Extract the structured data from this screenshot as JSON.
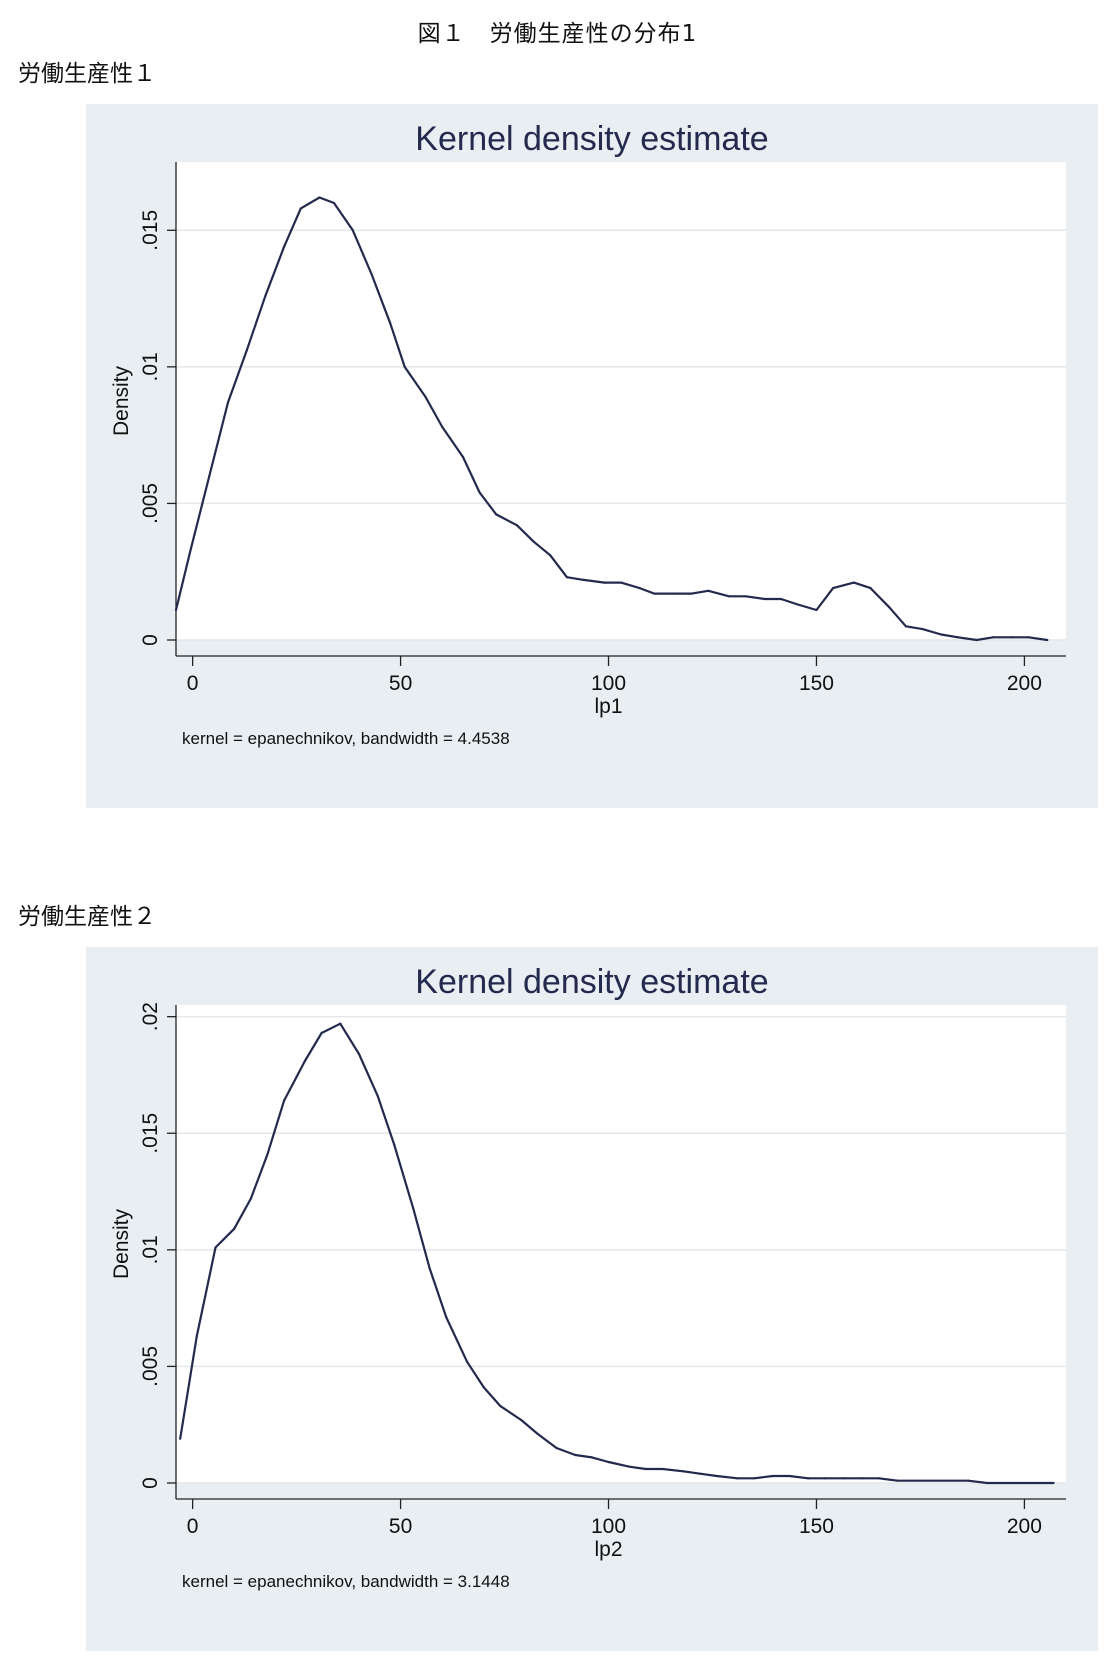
{
  "figure_title": "図１　労働生産性の分布1",
  "section_labels": [
    "労働生産性１",
    "労働生産性２"
  ],
  "colors": {
    "panel_bg": "#e8eef2",
    "plot_bg": "#ffffff",
    "grid": "#e3e7ea",
    "line": "#232a4d"
  },
  "chart_data": [
    {
      "type": "line",
      "title": "Kernel density estimate",
      "xlabel": "lp1",
      "ylabel": "Density",
      "note": "kernel = epanechnikov, bandwidth = 4.4538",
      "xlim": [
        -4,
        210
      ],
      "ylim": [
        0,
        0.0175
      ],
      "xticks": [
        0,
        50,
        100,
        150,
        200
      ],
      "xtick_labels": [
        "0",
        "50",
        "100",
        "150",
        "200"
      ],
      "yticks": [
        0,
        0.005,
        0.01,
        0.015
      ],
      "ytick_labels": [
        "0",
        ".005",
        ".01",
        ".015"
      ],
      "grid": true,
      "x": [
        -4,
        -0.5,
        4,
        8.5,
        13,
        17.5,
        22,
        26,
        30.5,
        34,
        38.5,
        43,
        47.5,
        51,
        56,
        60,
        65,
        69,
        73,
        78,
        82,
        86,
        90,
        94,
        99,
        103,
        107.5,
        111,
        116,
        120,
        124,
        129,
        133,
        137.5,
        141.5,
        145.5,
        150,
        154,
        159,
        163,
        167.5,
        171.5,
        175.5,
        180,
        184,
        188.5,
        192.5,
        197,
        201,
        205.5
      ],
      "y": [
        0.0011,
        0.0033,
        0.006,
        0.0087,
        0.0106,
        0.0126,
        0.0144,
        0.0158,
        0.0162,
        0.016,
        0.015,
        0.0134,
        0.0116,
        0.01,
        0.0089,
        0.0078,
        0.0067,
        0.0054,
        0.0046,
        0.0042,
        0.0036,
        0.0031,
        0.0023,
        0.0022,
        0.0021,
        0.0021,
        0.0019,
        0.0017,
        0.0017,
        0.0017,
        0.0018,
        0.0016,
        0.0016,
        0.0015,
        0.0015,
        0.0013,
        0.0011,
        0.0019,
        0.0021,
        0.0019,
        0.0012,
        0.0005,
        0.0004,
        0.0002,
        0.0001,
        0.0,
        0.0001,
        0.0001,
        0.0001,
        0.0
      ]
    },
    {
      "type": "line",
      "title": "Kernel density estimate",
      "xlabel": "lp2",
      "ylabel": "Density",
      "note": "kernel = epanechnikov, bandwidth = 3.1448",
      "xlim": [
        -4,
        210
      ],
      "ylim": [
        0,
        0.0205
      ],
      "xticks": [
        0,
        50,
        100,
        150,
        200
      ],
      "xtick_labels": [
        "0",
        "50",
        "100",
        "150",
        "200"
      ],
      "yticks": [
        0,
        0.005,
        0.01,
        0.015,
        0.02
      ],
      "ytick_labels": [
        "0",
        ".005",
        ".01",
        ".015",
        ".02"
      ],
      "grid": true,
      "x": [
        -3,
        1,
        5.5,
        10,
        14,
        18,
        22,
        27,
        31,
        35.5,
        40,
        44.5,
        48.5,
        53,
        57,
        61,
        66,
        70,
        74,
        79,
        83,
        87.5,
        92,
        96,
        100,
        105,
        109,
        113,
        118,
        122,
        126,
        131,
        135,
        139.5,
        143.5,
        148,
        152,
        156.5,
        161,
        165,
        169.5,
        173.5,
        178,
        182,
        186.5,
        191,
        195,
        199.5,
        203.5,
        207
      ],
      "y": [
        0.0019,
        0.0063,
        0.0101,
        0.0109,
        0.0122,
        0.0141,
        0.0164,
        0.0181,
        0.0193,
        0.0197,
        0.0184,
        0.0166,
        0.0145,
        0.0118,
        0.0092,
        0.0071,
        0.0052,
        0.0041,
        0.0033,
        0.0027,
        0.0021,
        0.0015,
        0.0012,
        0.0011,
        0.0009,
        0.0007,
        0.0006,
        0.0006,
        0.0005,
        0.0004,
        0.0003,
        0.0002,
        0.0002,
        0.0003,
        0.0003,
        0.0002,
        0.0002,
        0.0002,
        0.0002,
        0.0002,
        0.0001,
        0.0001,
        0.0001,
        0.0001,
        0.0001,
        0.0,
        0.0,
        0.0,
        0.0,
        0.0
      ]
    }
  ]
}
